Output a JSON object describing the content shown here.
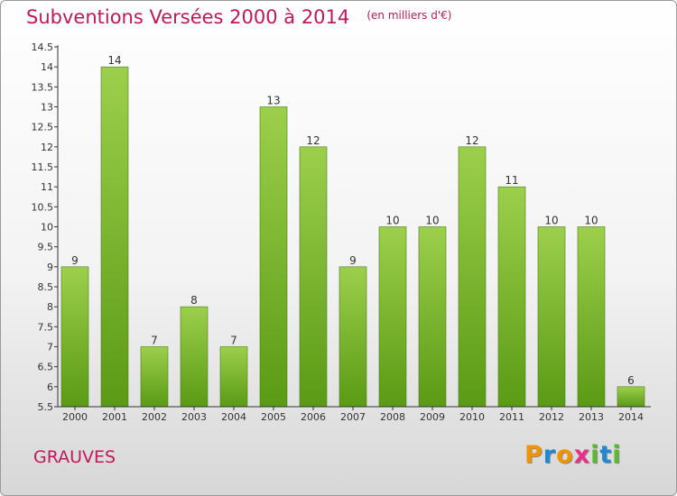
{
  "header": {
    "title": "Subventions Versées 2000 à 2014",
    "subtitle": "(en milliers d'€)"
  },
  "footer": {
    "commune": "GRAUVES",
    "brand": [
      "P",
      "r",
      "o",
      "x",
      "i",
      "t",
      "i"
    ],
    "brand_colors": [
      "#f29400",
      "#1e88d2",
      "#f29400",
      "#e8308a",
      "#5cb82e",
      "#1e88d2",
      "#5cb82e"
    ]
  },
  "colors": {
    "accent": "#c2185b",
    "bar_top": "#9ccf4c",
    "bar_bottom": "#5a9a14",
    "bar_border": "#4a7f10",
    "axis": "#333333"
  },
  "chart_data": {
    "type": "bar",
    "title": "Subventions Versées 2000 à 2014",
    "subtitle": "(en milliers d'€)",
    "xlabel": "",
    "ylabel": "",
    "categories": [
      "2000",
      "2001",
      "2002",
      "2003",
      "2004",
      "2005",
      "2006",
      "2007",
      "2008",
      "2009",
      "2010",
      "2011",
      "2012",
      "2013",
      "2014"
    ],
    "values": [
      9,
      14,
      7,
      8,
      7,
      13,
      12,
      9,
      10,
      10,
      12,
      11,
      10,
      10,
      6
    ],
    "data_labels": [
      "9",
      "14",
      "7",
      "8",
      "7",
      "13",
      "12",
      "9",
      "10",
      "10",
      "12",
      "11",
      "10",
      "10",
      "6"
    ],
    "ylim": [
      5.5,
      14.5
    ],
    "yticks": [
      5.5,
      6,
      6.5,
      7,
      7.5,
      8,
      8.5,
      9,
      9.5,
      10,
      10.5,
      11,
      11.5,
      12,
      12.5,
      13,
      13.5,
      14,
      14.5
    ],
    "ytick_labels": [
      "5.5",
      "6",
      "6.5",
      "7",
      "7.5",
      "8",
      "8.5",
      "9",
      "9.5",
      "10",
      "10.5",
      "11",
      "11.5",
      "12",
      "12.5",
      "13",
      "13.5",
      "14",
      "14.5"
    ],
    "grid": false,
    "legend": "none"
  }
}
